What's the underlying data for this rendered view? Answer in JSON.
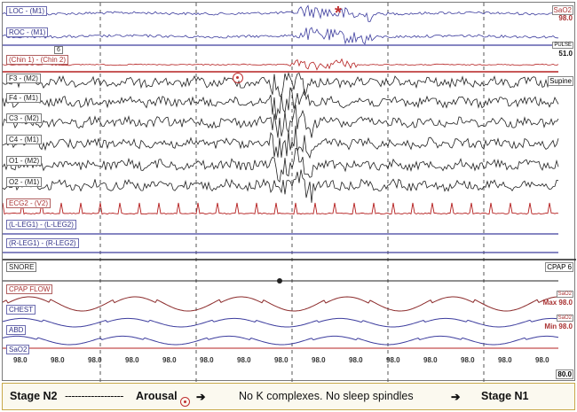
{
  "channels": {
    "loc": "LOC - (M1)",
    "roc": "ROC - (M1)",
    "chin": "(Chin 1) - (Chin 2)",
    "f3": "F3 - (M2)",
    "f4": "F4 - (M1)",
    "c3": "C3 - (M2)",
    "c4": "C4 - (M1)",
    "o1": "O1 - (M2)",
    "o2": "O2 - (M1)",
    "ecg": "ECG2 - (V2)",
    "lleg": "(L-LEG1) - (L-LEG2)",
    "rleg": "(R-LEG1) - (R-LEG2)",
    "snore": "SNORE",
    "cpapflow": "CPAP FLOW",
    "chest": "CHEST",
    "abd": "ABD",
    "sao2": "SaO2"
  },
  "right_panel": {
    "sao2_label": "SaO2",
    "sao2_value": "98.0",
    "pulse_label": "PULSE",
    "pulse_value": "51.0",
    "position": "Supine",
    "cpap": "CPAP 6",
    "sao2_small": "SaO2",
    "max_value": "Max 98.0",
    "min_value": "Min 98.0",
    "bottom_value": "80.0"
  },
  "spo2_readings": [
    "98.0",
    "98.0",
    "98.0",
    "98.0",
    "98.0",
    "98.0",
    "98.0",
    "98.0",
    "98.0",
    "98.0",
    "98.0",
    "98.0",
    "98.0",
    "98.0",
    "98.0"
  ],
  "markers": {
    "asterisk": "*",
    "page_box": "6"
  },
  "caption": {
    "stage_from": "Stage N2",
    "dashes": "------------------",
    "arousal": "Arousal",
    "arrow1": "➔",
    "note": "No K complexes. No sleep spindles",
    "arrow2": "➔",
    "stage_to": "Stage N1"
  },
  "colors": {
    "eeg": "#202020",
    "eog": "#3d3d9e",
    "chin": "#b52020",
    "ecg": "#b52020",
    "flow": "#8b2a2a",
    "resp": "#3d3d9e",
    "caption_border": "#c8a94a"
  }
}
